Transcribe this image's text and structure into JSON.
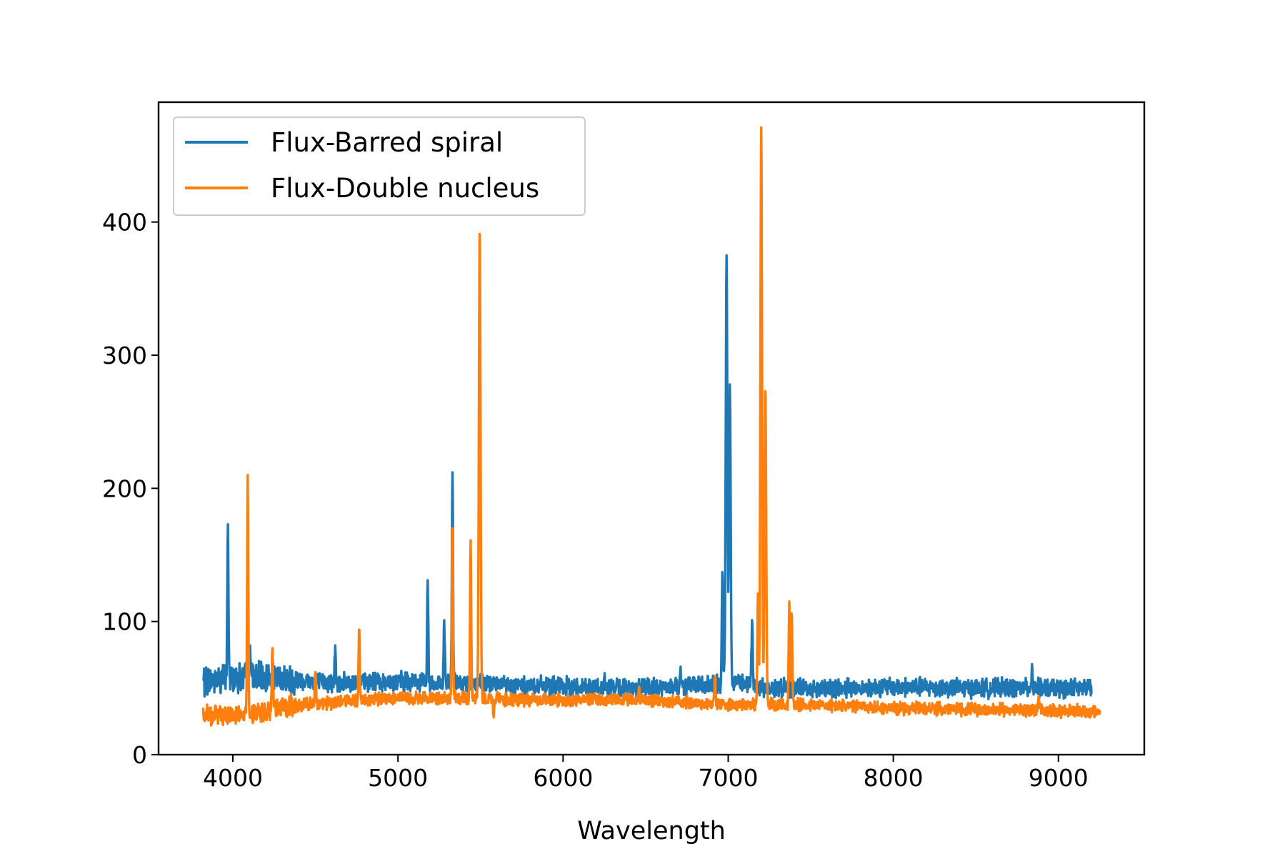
{
  "chart_data": {
    "type": "line",
    "title": "",
    "xlabel": "Wavelength",
    "ylabel": "",
    "xlim": [
      3550,
      9520
    ],
    "ylim": [
      0,
      490
    ],
    "xticks": [
      4000,
      5000,
      6000,
      7000,
      8000,
      9000
    ],
    "yticks": [
      0,
      100,
      200,
      300,
      400
    ],
    "grid": false,
    "legend_position": "upper-left",
    "series": [
      {
        "name": "Flux-Barred spiral",
        "color": "#1f77b4",
        "continuum": [
          [
            3820,
            55
          ],
          [
            4000,
            58
          ],
          [
            4300,
            57
          ],
          [
            4600,
            54
          ],
          [
            5000,
            55
          ],
          [
            5500,
            53
          ],
          [
            6000,
            51
          ],
          [
            6500,
            50
          ],
          [
            6900,
            52
          ],
          [
            7050,
            55
          ],
          [
            7200,
            50
          ],
          [
            7600,
            50
          ],
          [
            8000,
            51
          ],
          [
            8500,
            50
          ],
          [
            9000,
            50
          ],
          [
            9200,
            50
          ]
        ],
        "noise": 6,
        "lines": [
          [
            3970,
            173
          ],
          [
            4105,
            82
          ],
          [
            4620,
            82
          ],
          [
            5180,
            131
          ],
          [
            5280,
            101
          ],
          [
            5330,
            212
          ],
          [
            5580,
            58
          ],
          [
            6250,
            58
          ],
          [
            6710,
            64
          ],
          [
            6760,
            58
          ],
          [
            6965,
            137
          ],
          [
            6990,
            375
          ],
          [
            7010,
            278
          ],
          [
            7145,
            101
          ],
          [
            8840,
            68
          ]
        ]
      },
      {
        "name": "Flux-Double nucleus",
        "color": "#ff7f0e",
        "continuum": [
          [
            3820,
            30
          ],
          [
            4000,
            30
          ],
          [
            4200,
            32
          ],
          [
            4350,
            37
          ],
          [
            4600,
            39
          ],
          [
            5000,
            43
          ],
          [
            5500,
            42
          ],
          [
            6000,
            41
          ],
          [
            6500,
            41
          ],
          [
            6900,
            38
          ],
          [
            7200,
            38
          ],
          [
            7600,
            37
          ],
          [
            8000,
            35
          ],
          [
            8500,
            34
          ],
          [
            9000,
            33
          ],
          [
            9250,
            32
          ]
        ],
        "noise": 4,
        "lines": [
          [
            4090,
            210
          ],
          [
            4240,
            80
          ],
          [
            4500,
            62
          ],
          [
            4765,
            94
          ],
          [
            5330,
            170
          ],
          [
            5440,
            161
          ],
          [
            5495,
            391
          ],
          [
            5580,
            28
          ],
          [
            6460,
            51
          ],
          [
            6920,
            59
          ],
          [
            7180,
            121
          ],
          [
            7200,
            471
          ],
          [
            7225,
            273
          ],
          [
            7370,
            115
          ],
          [
            7385,
            106
          ],
          [
            8880,
            44
          ]
        ]
      }
    ]
  }
}
